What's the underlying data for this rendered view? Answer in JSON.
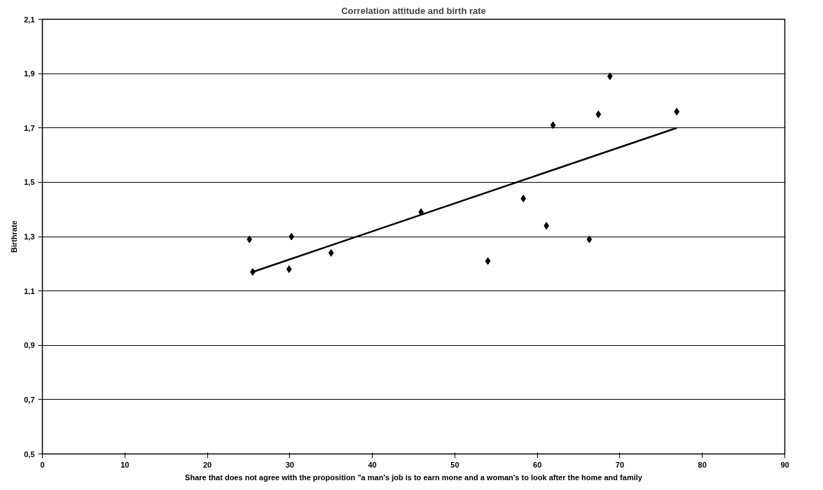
{
  "chart_data": {
    "type": "scatter",
    "title": "Correlation attitude and birth rate",
    "xlabel": "Share that does not agree with the proposition \"a man's job is to earn mone and a woman's to look after the home and family",
    "ylabel": "Birthrate",
    "series": [
      {
        "color": "#000000",
        "marker": "diamond",
        "x": [
          25.1,
          25.5,
          30.2,
          29.9,
          35.0,
          45.9,
          54.0,
          58.3,
          61.1,
          61.9,
          66.3,
          67.4,
          68.8,
          76.9
        ],
        "values": [
          1.29,
          1.17,
          1.3,
          1.18,
          1.24,
          1.39,
          1.21,
          1.44,
          1.34,
          1.71,
          1.29,
          1.75,
          1.89,
          1.76
        ]
      },
      {
        "type": "line",
        "color": "#000000",
        "x": [
          25.5,
          76.9
        ],
        "values": [
          1.17,
          1.7
        ]
      }
    ],
    "xlim": [
      0,
      90
    ],
    "xticks": [
      0,
      10,
      20,
      30,
      40,
      50,
      60,
      70,
      80,
      90
    ],
    "ylim": [
      0.5,
      2.1
    ],
    "yticks": [
      {
        "value": 0.5,
        "label": "0,5"
      },
      {
        "value": 0.7,
        "label": "0,7"
      },
      {
        "value": 0.9,
        "label": "0,9"
      },
      {
        "value": 1.1,
        "label": "1,1"
      },
      {
        "value": 1.3,
        "label": "1,3"
      },
      {
        "value": 1.5,
        "label": "1,5"
      },
      {
        "value": 1.7,
        "label": "1,7"
      },
      {
        "value": 1.9,
        "label": "1,9"
      },
      {
        "value": 2.1,
        "label": "2,1"
      }
    ],
    "grid": "y"
  }
}
